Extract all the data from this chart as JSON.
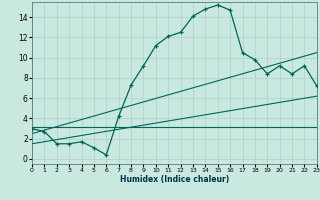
{
  "xlabel": "Humidex (Indice chaleur)",
  "bg_color": "#c8e8e0",
  "grid_color": "#b0d0cc",
  "line_color": "#006655",
  "xlim": [
    0,
    23
  ],
  "ylim": [
    -0.5,
    15.5
  ],
  "xtick_vals": [
    0,
    1,
    2,
    3,
    4,
    5,
    6,
    7,
    8,
    9,
    10,
    11,
    12,
    13,
    14,
    15,
    16,
    17,
    18,
    19,
    20,
    21,
    22,
    23
  ],
  "ytick_vals": [
    0,
    2,
    4,
    6,
    8,
    10,
    12,
    14
  ],
  "main_x": [
    0,
    1,
    2,
    3,
    4,
    5,
    6,
    7,
    8,
    9,
    10,
    11,
    12,
    13,
    14,
    15,
    16,
    17,
    18,
    19,
    20,
    21,
    22,
    23
  ],
  "main_y": [
    3.0,
    2.7,
    1.5,
    1.5,
    1.7,
    1.1,
    0.4,
    4.2,
    7.3,
    9.2,
    11.2,
    12.1,
    12.5,
    14.1,
    14.8,
    15.2,
    14.7,
    10.5,
    9.8,
    8.4,
    9.2,
    8.4,
    9.2,
    7.2
  ],
  "line1_x": [
    0,
    23
  ],
  "line1_y": [
    2.5,
    10.5
  ],
  "line2_x": [
    0,
    23
  ],
  "line2_y": [
    1.5,
    6.2
  ],
  "line3_x": [
    0,
    23
  ],
  "line3_y": [
    3.2,
    3.2
  ]
}
